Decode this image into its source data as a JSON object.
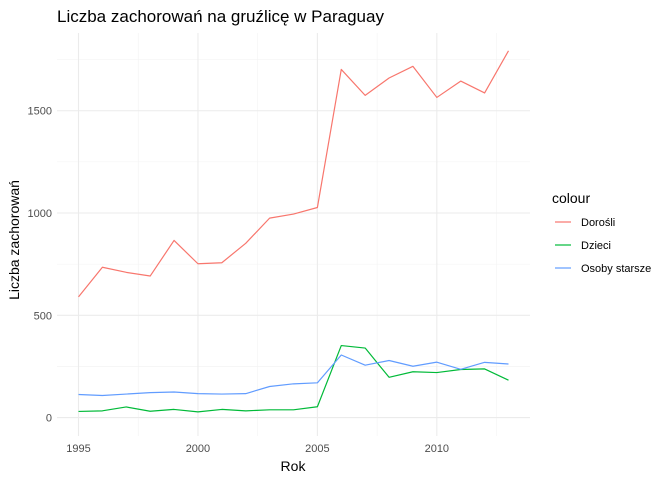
{
  "chart_data": {
    "type": "line",
    "title": "Liczba zachorowań na gruźlicę w Paraguay",
    "xlabel": "Rok",
    "ylabel": "Liczba zachorowań",
    "x": [
      1995,
      1996,
      1997,
      1998,
      1999,
      2000,
      2001,
      2002,
      2003,
      2004,
      2005,
      2006,
      2007,
      2008,
      2009,
      2010,
      2011,
      2012,
      2013
    ],
    "xlim": [
      1994.1,
      2013.9
    ],
    "ylim": [
      -90,
      1880
    ],
    "x_ticks": [
      1995,
      2000,
      2005,
      2010
    ],
    "x_tick_labels": [
      "1995",
      "2000",
      "2005",
      "2010"
    ],
    "y_ticks": [
      0,
      500,
      1000,
      1500
    ],
    "y_tick_labels": [
      "0",
      "500",
      "1000",
      "1500"
    ],
    "grid": true,
    "legend": {
      "title": "colour",
      "position": "right",
      "entries": [
        "Dorośli",
        "Dzieci",
        "Osoby starsze"
      ]
    },
    "series": [
      {
        "name": "Dorośli",
        "color": "#F8766D",
        "values": [
          590,
          735,
          710,
          692,
          866,
          752,
          757,
          852,
          975,
          995,
          1027,
          1702,
          1575,
          1660,
          1717,
          1565,
          1645,
          1587,
          1793
        ]
      },
      {
        "name": "Dzieci",
        "color": "#00BA38",
        "values": [
          30,
          33,
          52,
          31,
          40,
          28,
          40,
          33,
          38,
          38,
          53,
          352,
          340,
          197,
          224,
          220,
          235,
          238,
          183
        ]
      },
      {
        "name": "Osoby starsze",
        "color": "#619CFF",
        "values": [
          113,
          108,
          115,
          122,
          125,
          117,
          115,
          117,
          152,
          165,
          170,
          306,
          256,
          279,
          251,
          271,
          236,
          270,
          262
        ]
      }
    ]
  }
}
